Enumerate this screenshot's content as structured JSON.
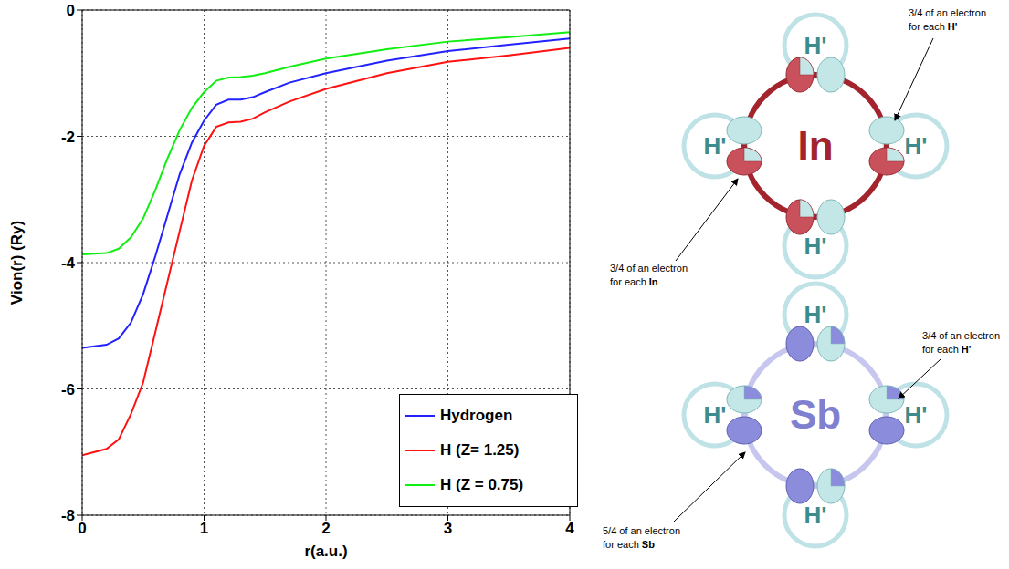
{
  "chart_data": {
    "type": "line",
    "x_label": "r(a.u.)",
    "y_label": "Vion(r) (Ry)",
    "x": [
      0,
      0.2,
      0.3,
      0.4,
      0.5,
      0.6,
      0.7,
      0.8,
      0.9,
      1.0,
      1.1,
      1.2,
      1.3,
      1.4,
      1.5,
      1.7,
      2.0,
      2.5,
      3.0,
      3.5,
      4.0
    ],
    "series": [
      {
        "name": "Hydrogen",
        "color": "#2222ff",
        "values": [
          -5.35,
          -5.3,
          -5.2,
          -4.95,
          -4.5,
          -3.9,
          -3.25,
          -2.6,
          -2.1,
          -1.75,
          -1.5,
          -1.42,
          -1.42,
          -1.38,
          -1.3,
          -1.15,
          -1.0,
          -0.8,
          -0.65,
          -0.55,
          -0.45
        ]
      },
      {
        "name": "H (Z= 1.25)",
        "color": "#ff1111",
        "values": [
          -7.05,
          -6.95,
          -6.8,
          -6.4,
          -5.9,
          -5.1,
          -4.3,
          -3.5,
          -2.7,
          -2.15,
          -1.85,
          -1.78,
          -1.77,
          -1.72,
          -1.62,
          -1.45,
          -1.25,
          -1.0,
          -0.82,
          -0.72,
          -0.6
        ]
      },
      {
        "name": "H (Z = 0.75)",
        "color": "#11ee11",
        "values": [
          -3.87,
          -3.85,
          -3.78,
          -3.6,
          -3.3,
          -2.85,
          -2.35,
          -1.9,
          -1.55,
          -1.3,
          -1.12,
          -1.07,
          -1.06,
          -1.04,
          -1.0,
          -0.9,
          -0.77,
          -0.62,
          -0.5,
          -0.43,
          -0.35
        ]
      }
    ],
    "xlim": [
      0,
      4
    ],
    "xticks": [
      0,
      1,
      2,
      3,
      4
    ],
    "ylim": [
      -8,
      0
    ],
    "yticks": [
      -8,
      -6,
      -4,
      -2,
      0
    ],
    "grid": true,
    "legend": "lower right"
  },
  "diagram": {
    "clusters": [
      {
        "center_label": "In",
        "ligand_labels": [
          "H'",
          "H'",
          "H'",
          "H'"
        ],
        "annotations": [
          {
            "lines": [
              "3/4 of an electron",
              "for each"
            ],
            "subject": "H'"
          },
          {
            "lines": [
              "3/4 of an electron",
              "for each"
            ],
            "subject": "In"
          }
        ]
      },
      {
        "center_label": "Sb",
        "ligand_labels": [
          "H'",
          "H'",
          "H'",
          "H'"
        ],
        "annotations": [
          {
            "lines": [
              "3/4 of an electron",
              "for each"
            ],
            "subject": "H'"
          },
          {
            "lines": [
              "5/4 of an electron",
              "for each"
            ],
            "subject": "Sb"
          }
        ]
      }
    ]
  }
}
